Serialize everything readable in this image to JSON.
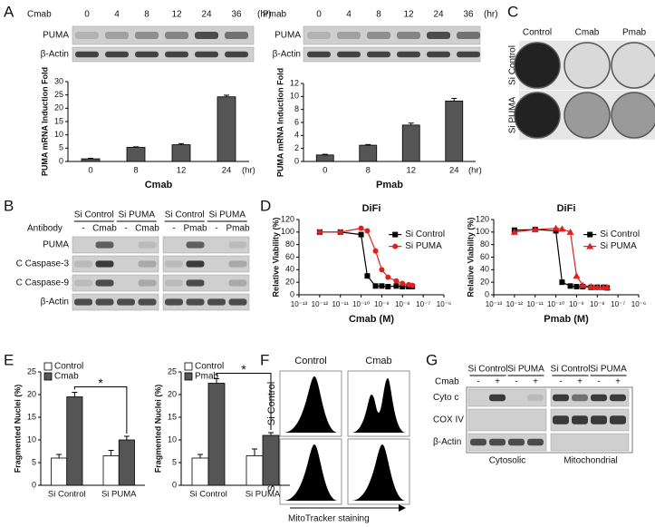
{
  "panel_letters": [
    "A",
    "B",
    "C",
    "D",
    "E",
    "F",
    "G"
  ],
  "panel_a": {
    "left": {
      "treatment": "Cmab",
      "times": [
        "0",
        "4",
        "8",
        "12",
        "24",
        "36"
      ],
      "unit": "(hr)",
      "rows": [
        "PUMA",
        "β-Actin"
      ]
    },
    "right": {
      "treatment": "Pmab",
      "times": [
        "0",
        "4",
        "8",
        "12",
        "24",
        "36"
      ],
      "unit": "(hr)",
      "rows": [
        "PUMA",
        "β-Actin"
      ]
    }
  },
  "panel_b": {
    "groups": [
      "Si Control",
      "Si PUMA",
      "Si Control",
      "Si PUMA"
    ],
    "antibody": "Antibody",
    "lanes": [
      "-",
      "Cmab",
      "-",
      "Cmab",
      "-",
      "Pmab",
      "-",
      "Pmab"
    ],
    "rows": [
      "PUMA",
      "C Caspase-3",
      "C Caspase-9",
      "β-Actin"
    ]
  },
  "panel_c": {
    "columns": [
      "Control",
      "Cmab",
      "Pmab"
    ],
    "rows": [
      "Si Control",
      "Si PUMA"
    ]
  },
  "panel_f": {
    "columns": [
      "Control",
      "Cmab"
    ],
    "rows": [
      "Si Control",
      "Si PUMA"
    ],
    "xlabel": "MitoTracker staining"
  },
  "panel_g": {
    "groups": [
      "Si Control",
      "Si PUMA",
      "Si Control",
      "Si PUMA"
    ],
    "treatment": "Cmab",
    "lanes": [
      "-",
      "+",
      "-",
      "+",
      "-",
      "+",
      "-",
      "+"
    ],
    "rows": [
      "Cyto c",
      "COX IV",
      "β-Actin"
    ],
    "fractions": [
      "Cytosolic",
      "Mitochondrial"
    ]
  },
  "chart_data": [
    {
      "type": "bar",
      "ylabel": "PUMA mRNA Induction Fold",
      "xlabel": "Cmab",
      "xunit": "(hr)",
      "categories": [
        "0",
        "8",
        "12",
        "24"
      ],
      "values": [
        1.0,
        5.3,
        6.3,
        24.3
      ],
      "errors": [
        0.2,
        0.2,
        0.4,
        0.6
      ],
      "color": "#555555",
      "ylim": [
        0,
        30
      ],
      "yticks": [
        0,
        5,
        10,
        15,
        20,
        25,
        30
      ]
    },
    {
      "type": "bar",
      "ylabel": "PUMA mRNA Induction Fold",
      "xlabel": "Pmab",
      "xunit": "(hr)",
      "categories": [
        "0",
        "8",
        "12",
        "24"
      ],
      "values": [
        1.0,
        2.5,
        5.6,
        9.3
      ],
      "errors": [
        0.1,
        0.1,
        0.3,
        0.4
      ],
      "color": "#555555",
      "ylim": [
        0,
        12
      ],
      "yticks": [
        0,
        2,
        4,
        6,
        8,
        10,
        12
      ]
    },
    {
      "type": "line",
      "title": "DiFi",
      "xlabel": "Cmab (M)",
      "ylabel": "Relative Viability (%)",
      "log_x": true,
      "x": [
        1e-12,
        1e-11,
        1e-10,
        2e-10,
        5e-10,
        1e-09,
        2e-09,
        5e-09,
        1e-08,
        2e-08,
        3e-08
      ],
      "xlim": [
        1e-13,
        1e-06
      ],
      "xticks": [
        {
          "value": 1e-13,
          "label": "10⁻¹³"
        },
        {
          "value": 1e-12,
          "label": "10⁻¹²"
        },
        {
          "value": 1e-11,
          "label": "10⁻¹¹"
        },
        {
          "value": 1e-10,
          "label": "10⁻¹⁰"
        },
        {
          "value": 1e-09,
          "label": "10⁻⁹"
        },
        {
          "value": 1e-08,
          "label": "10⁻⁸"
        },
        {
          "value": 1e-07,
          "label": "10⁻⁷"
        },
        {
          "value": 1e-06,
          "label": "10⁻⁶"
        }
      ],
      "ylim": [
        0,
        120
      ],
      "yticks": [
        0,
        20,
        40,
        60,
        80,
        100,
        120
      ],
      "series": [
        {
          "name": "Si Control",
          "color": "#000000",
          "marker": "square",
          "values": [
            100,
            100,
            96,
            30,
            14,
            14,
            13,
            14,
            13,
            13,
            13
          ]
        },
        {
          "name": "Si PUMA",
          "color": "#e02020",
          "marker": "circle",
          "values": [
            100,
            100,
            106,
            102,
            70,
            40,
            28,
            22,
            18,
            16,
            15
          ]
        }
      ]
    },
    {
      "type": "line",
      "title": "DiFi",
      "xlabel": "Pmab (M)",
      "ylabel": "Relative Viability (%)",
      "log_x": true,
      "x": [
        1e-12,
        1e-11,
        1e-10,
        2e-10,
        5e-10,
        1e-09,
        2e-09,
        5e-09,
        1e-08,
        2e-08,
        3e-08
      ],
      "xlim": [
        1e-13,
        1e-06
      ],
      "xticks": [
        {
          "value": 1e-13,
          "label": "10⁻¹³"
        },
        {
          "value": 1e-12,
          "label": "10⁻¹²"
        },
        {
          "value": 1e-11,
          "label": "10⁻¹¹"
        },
        {
          "value": 1e-10,
          "label": "10⁻¹⁰"
        },
        {
          "value": 1e-09,
          "label": "10⁻⁹"
        },
        {
          "value": 1e-08,
          "label": "10⁻⁸"
        },
        {
          "value": 1e-07,
          "label": "10⁻⁷"
        },
        {
          "value": 1e-06,
          "label": "10⁻⁶"
        }
      ],
      "ylim": [
        0,
        120
      ],
      "yticks": [
        0,
        20,
        40,
        60,
        80,
        100,
        120
      ],
      "series": [
        {
          "name": "Si Control",
          "color": "#000000",
          "marker": "square",
          "values": [
            103,
            104,
            102,
            20,
            14,
            13,
            13,
            12,
            12,
            12,
            11
          ]
        },
        {
          "name": "Si PUMA",
          "color": "#e02020",
          "marker": "triangle",
          "values": [
            100,
            104,
            106,
            105,
            100,
            30,
            15,
            13,
            12,
            12,
            12
          ]
        }
      ]
    },
    {
      "type": "bar",
      "ylabel": "Fragmented Nuclei (%)",
      "annotation": "*",
      "categories": [
        "Si Control",
        "Si PUMA"
      ],
      "ylim": [
        0,
        25
      ],
      "yticks": [
        0,
        5,
        10,
        15,
        20,
        25
      ],
      "series": [
        {
          "name": "Control",
          "color": "#ffffff",
          "values": [
            6,
            6.5
          ],
          "errors": [
            0.8,
            1.2
          ]
        },
        {
          "name": "Cmab",
          "color": "#555555",
          "values": [
            19.5,
            10
          ],
          "errors": [
            1.0,
            0.8
          ]
        }
      ]
    },
    {
      "type": "bar",
      "ylabel": "Fragmented Nuclei (%)",
      "annotation": "*",
      "categories": [
        "Si Control",
        "Si PUMA"
      ],
      "ylim": [
        0,
        25
      ],
      "yticks": [
        0,
        5,
        10,
        15,
        20,
        25
      ],
      "series": [
        {
          "name": "Control",
          "color": "#ffffff",
          "values": [
            6,
            6.5
          ],
          "errors": [
            0.8,
            1.5
          ]
        },
        {
          "name": "Pmab",
          "color": "#555555",
          "values": [
            22.5,
            11
          ],
          "errors": [
            1.0,
            0.6
          ]
        }
      ]
    }
  ]
}
